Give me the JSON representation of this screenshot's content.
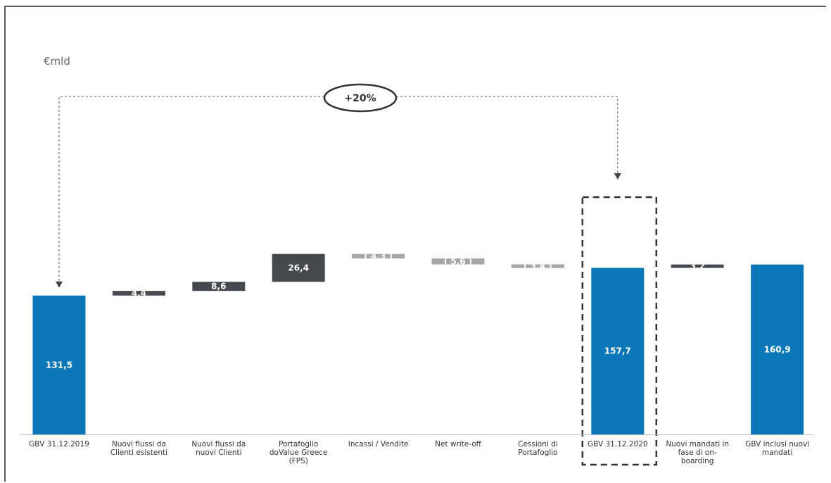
{
  "chart_data": {
    "type": "bar",
    "subtype": "waterfall",
    "unit_label": "€mld",
    "growth_annotation": "+20%",
    "colors": {
      "total": "#0a78b8",
      "increase": "#45484c",
      "decrease": "#a6a6a6"
    },
    "bars": [
      {
        "category": [
          "GBV 31.12.2019"
        ],
        "kind": "total",
        "value": 131.5,
        "label": "131,5"
      },
      {
        "category": [
          "Nuovi flussi da",
          "Clienti esistenti"
        ],
        "kind": "increase",
        "value": 4.4,
        "label": "4,4"
      },
      {
        "category": [
          "Nuovi flussi da",
          "nuovi Clienti"
        ],
        "kind": "increase",
        "value": 8.6,
        "label": "8,6"
      },
      {
        "category": [
          "Portafoglio",
          "doValue Greece",
          "(FPS)"
        ],
        "kind": "increase",
        "value": 26.4,
        "label": "26,4"
      },
      {
        "category": [
          "Incassi / Vendite"
        ],
        "kind": "decrease",
        "value": -4.3,
        "label": "( 4,3 )"
      },
      {
        "category": [
          "Net write-off"
        ],
        "kind": "decrease",
        "value": -5.6,
        "label": "( 5,6 )"
      },
      {
        "category": [
          "Cessioni di",
          "Portafoglio"
        ],
        "kind": "decrease",
        "value": -3.4,
        "label": "( 3,4 )"
      },
      {
        "category": [
          "GBV 31.12.2020"
        ],
        "kind": "total",
        "value": 157.7,
        "label": "157,7",
        "highlighted": true
      },
      {
        "category": [
          "Nuovi mandati in",
          "fase di on-",
          "boarding"
        ],
        "kind": "increase",
        "value": 3.2,
        "label": "3,2"
      },
      {
        "category": [
          "GBV inclusi nuovi",
          "mandati"
        ],
        "kind": "total",
        "value": 160.9,
        "label": "160,9"
      }
    ],
    "annotation_arrow": {
      "from_bar": 0,
      "to_bar": 7
    }
  }
}
